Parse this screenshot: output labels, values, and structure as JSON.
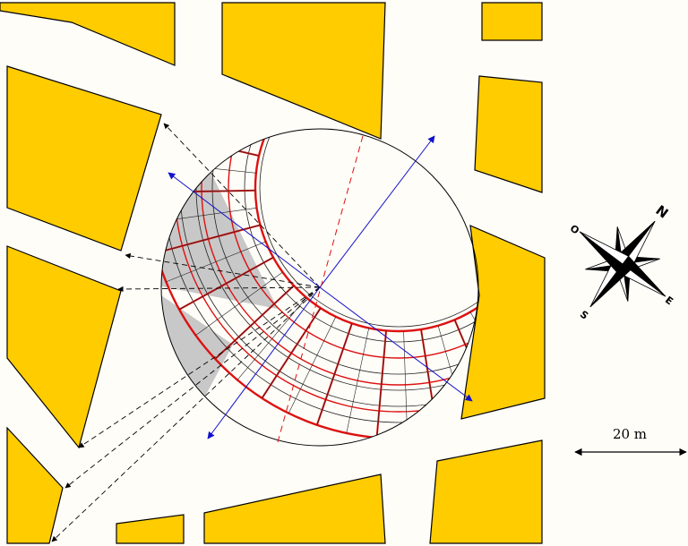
{
  "colors": {
    "background": "#fffdf8",
    "building": "#ffcc00",
    "shadow": "#c8c8c8",
    "sun_path": "#dd1111",
    "grid": "#222222",
    "axis": "#1111cc",
    "sight_line": "#000000"
  },
  "map": {
    "scale_label": "20 m",
    "icons": {
      "compass": "compass-rose-icon",
      "scale": "double-arrow-icon"
    }
  },
  "compass": {
    "north": "N",
    "east": "E",
    "south": "S",
    "west": "O"
  }
}
